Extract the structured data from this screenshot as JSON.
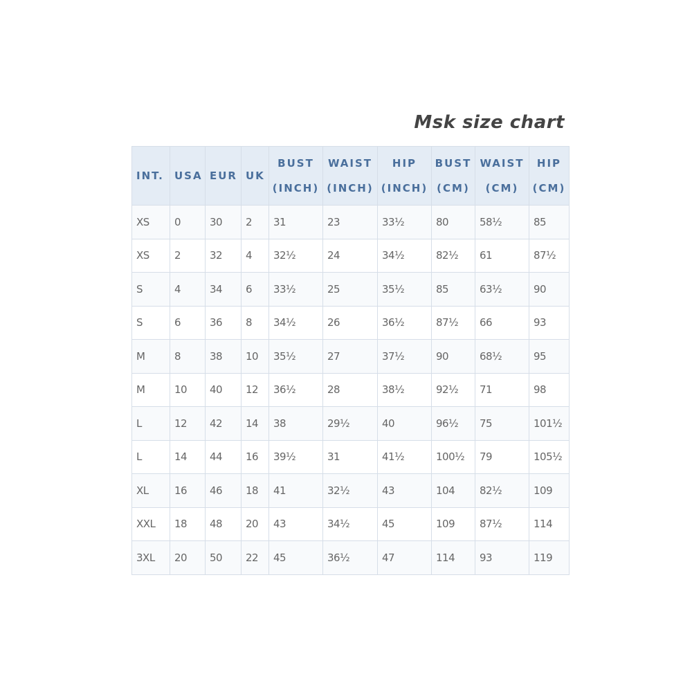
{
  "title": "Msk size chart",
  "columns": [
    {
      "line1": "INT.",
      "line2": ""
    },
    {
      "line1": "USA",
      "line2": ""
    },
    {
      "line1": "EUR",
      "line2": ""
    },
    {
      "line1": "UK",
      "line2": ""
    },
    {
      "line1": "BUST",
      "line2": "(INCH)"
    },
    {
      "line1": "WAIST",
      "line2": "(INCH)"
    },
    {
      "line1": "HIP",
      "line2": "(INCH)"
    },
    {
      "line1": "BUST",
      "line2": "(CM)"
    },
    {
      "line1": "WAIST",
      "line2": "(CM)"
    },
    {
      "line1": "HIP",
      "line2": "(CM)"
    }
  ],
  "rows": [
    [
      "XS",
      "0",
      "30",
      "2",
      "31",
      "23",
      "33½",
      "80",
      "58½",
      "85"
    ],
    [
      "XS",
      "2",
      "32",
      "4",
      "32½",
      "24",
      "34½",
      "82½",
      "61",
      "87½"
    ],
    [
      "S",
      "4",
      "34",
      "6",
      "33½",
      "25",
      "35½",
      "85",
      "63½",
      "90"
    ],
    [
      "S",
      "6",
      "36",
      "8",
      "34½",
      "26",
      "36½",
      "87½",
      "66",
      "93"
    ],
    [
      "M",
      "8",
      "38",
      "10",
      "35½",
      "27",
      "37½",
      "90",
      "68½",
      "95"
    ],
    [
      "M",
      "10",
      "40",
      "12",
      "36½",
      "28",
      "38½",
      "92½",
      "71",
      "98"
    ],
    [
      "L",
      "12",
      "42",
      "14",
      "38",
      "29½",
      "40",
      "96½",
      "75",
      "101½"
    ],
    [
      "L",
      "14",
      "44",
      "16",
      "39½",
      "31",
      "41½",
      "100½",
      "79",
      "105½"
    ],
    [
      "XL",
      "16",
      "46",
      "18",
      "41",
      "32½",
      "43",
      "104",
      "82½",
      "109"
    ],
    [
      "XXL",
      "18",
      "48",
      "20",
      "43",
      "34½",
      "45",
      "109",
      "87½",
      "114"
    ],
    [
      "3XL",
      "20",
      "50",
      "22",
      "45",
      "36½",
      "47",
      "114",
      "93",
      "119"
    ]
  ]
}
